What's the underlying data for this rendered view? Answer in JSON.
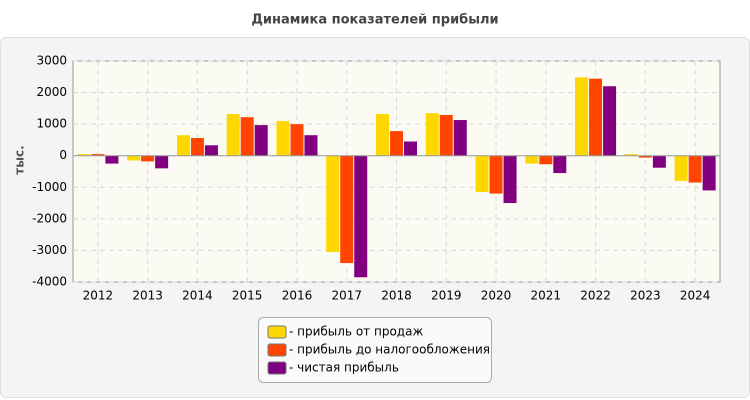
{
  "chart_data": {
    "type": "bar",
    "title": "Динамика показателей прибыли",
    "ylabel": "тыс.",
    "categories": [
      "2012",
      "2013",
      "2014",
      "2015",
      "2016",
      "2017",
      "2018",
      "2019",
      "2020",
      "2021",
      "2022",
      "2023",
      "2024"
    ],
    "series": [
      {
        "name": "- прибыль от продаж",
        "color": "#ffd700",
        "values": [
          50,
          -150,
          650,
          1320,
          1100,
          -3050,
          1320,
          1350,
          -1150,
          -250,
          2480,
          50,
          -800
        ]
      },
      {
        "name": "- прибыль до налогообложения",
        "color": "#ff4500",
        "values": [
          50,
          -180,
          560,
          1220,
          1000,
          -3400,
          780,
          1290,
          -1200,
          -270,
          2440,
          -60,
          -850
        ]
      },
      {
        "name": "- чистая прибыль",
        "color": "#800080",
        "values": [
          -250,
          -400,
          330,
          970,
          650,
          -3850,
          450,
          1130,
          -1500,
          -550,
          2200,
          -380,
          -1100
        ]
      }
    ],
    "ylim": [
      -4000,
      3000
    ],
    "yticks": [
      -4000,
      -3000,
      -2000,
      -1000,
      0,
      1000,
      2000,
      3000
    ],
    "grid": true
  }
}
